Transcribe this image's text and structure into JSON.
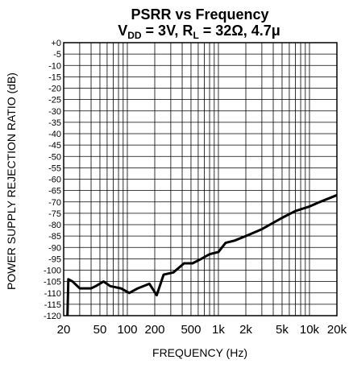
{
  "chart_data": {
    "type": "line",
    "title_line1": "PSRR vs Frequency",
    "title_line2": {
      "v": "V",
      "v_sub": "DD",
      "v_value": " = 3V, R",
      "r_sub": "L",
      "r_value": " = 32Ω, 4.7μ"
    },
    "xlabel": "FREQUENCY (Hz)",
    "ylabel": "POWER SUPPLY REJECTION RATIO (dB)",
    "x_scale": "log",
    "xlim": [
      20,
      20000
    ],
    "ylim": [
      -120,
      0
    ],
    "grid": true,
    "x_tick_labels": [
      {
        "value": 20,
        "label": "20"
      },
      {
        "value": 50,
        "label": "50"
      },
      {
        "value": 100,
        "label": "100"
      },
      {
        "value": 200,
        "label": "200"
      },
      {
        "value": 500,
        "label": "500"
      },
      {
        "value": 1000,
        "label": "1k"
      },
      {
        "value": 2000,
        "label": "2k"
      },
      {
        "value": 5000,
        "label": "5k"
      },
      {
        "value": 10000,
        "label": "10k"
      },
      {
        "value": 20000,
        "label": "20k"
      }
    ],
    "y_tick_labels": [
      "+0",
      "-5",
      "-10",
      "-15",
      "-20",
      "-25",
      "-30",
      "-35",
      "-40",
      "-45",
      "-50",
      "-55",
      "-60",
      "-65",
      "-70",
      "-75",
      "-80",
      "-85",
      "-90",
      "-95",
      "-100",
      "-105",
      "-110",
      "-115",
      "-120"
    ],
    "series": [
      {
        "x": [
          22,
          22.5,
          25,
          30,
          40,
          45,
          55,
          65,
          85,
          105,
          130,
          175,
          210,
          250,
          320,
          420,
          520,
          650,
          800,
          1000,
          1200,
          1500,
          2000,
          3000,
          5000,
          7000,
          10000,
          13000,
          20000
        ],
        "y": [
          -120,
          -104,
          -105,
          -108,
          -108,
          -107,
          -105,
          -107,
          -108,
          -110,
          -108,
          -106,
          -111,
          -102,
          -101,
          -97,
          -97,
          -95,
          -93,
          -92,
          -88,
          -87,
          -85,
          -82,
          -77,
          -74,
          -72,
          -70,
          -67
        ]
      }
    ]
  }
}
